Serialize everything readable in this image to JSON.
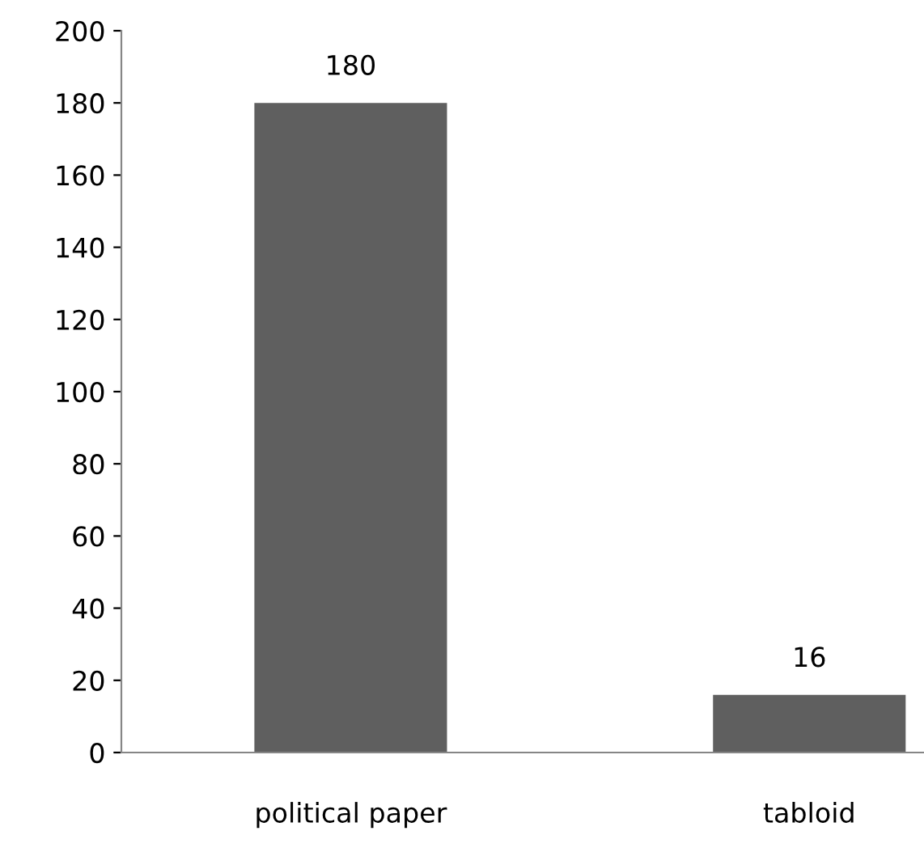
{
  "chart_data": {
    "type": "bar",
    "categories": [
      "political paper",
      "tabloid"
    ],
    "values": [
      180,
      16
    ],
    "color": "#5f5f5f",
    "ylim": [
      0,
      200
    ],
    "yticks": [
      0,
      20,
      40,
      60,
      80,
      100,
      120,
      140,
      160,
      180,
      200
    ],
    "data_labels": true,
    "grid": false,
    "legend": false
  }
}
